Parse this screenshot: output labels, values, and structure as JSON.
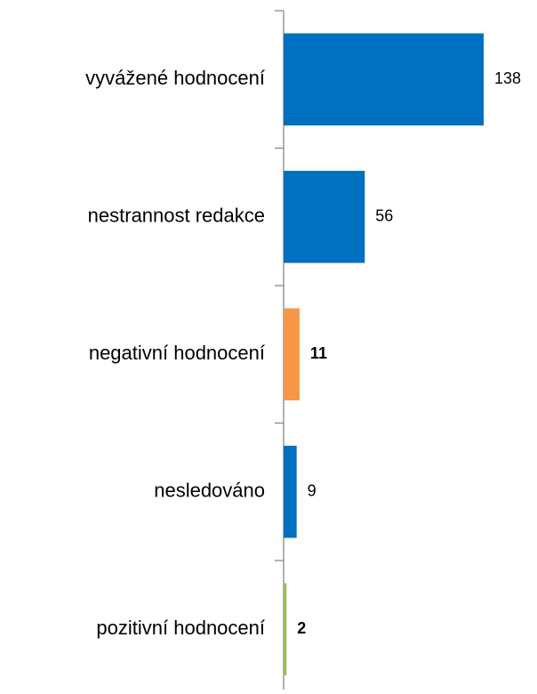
{
  "chart_data": {
    "type": "bar",
    "orientation": "horizontal",
    "categories": [
      "vyvážené hodnocení",
      "nestrannost redakce",
      "negativní hodnocení",
      "nesledováno",
      "pozitivní hodnocení"
    ],
    "values": [
      138,
      56,
      11,
      9,
      2
    ],
    "colors": [
      "#0070c0",
      "#0070c0",
      "#f79646",
      "#0070c0",
      "#9bbb59"
    ],
    "bold_labels": [
      false,
      false,
      true,
      false,
      true
    ]
  }
}
